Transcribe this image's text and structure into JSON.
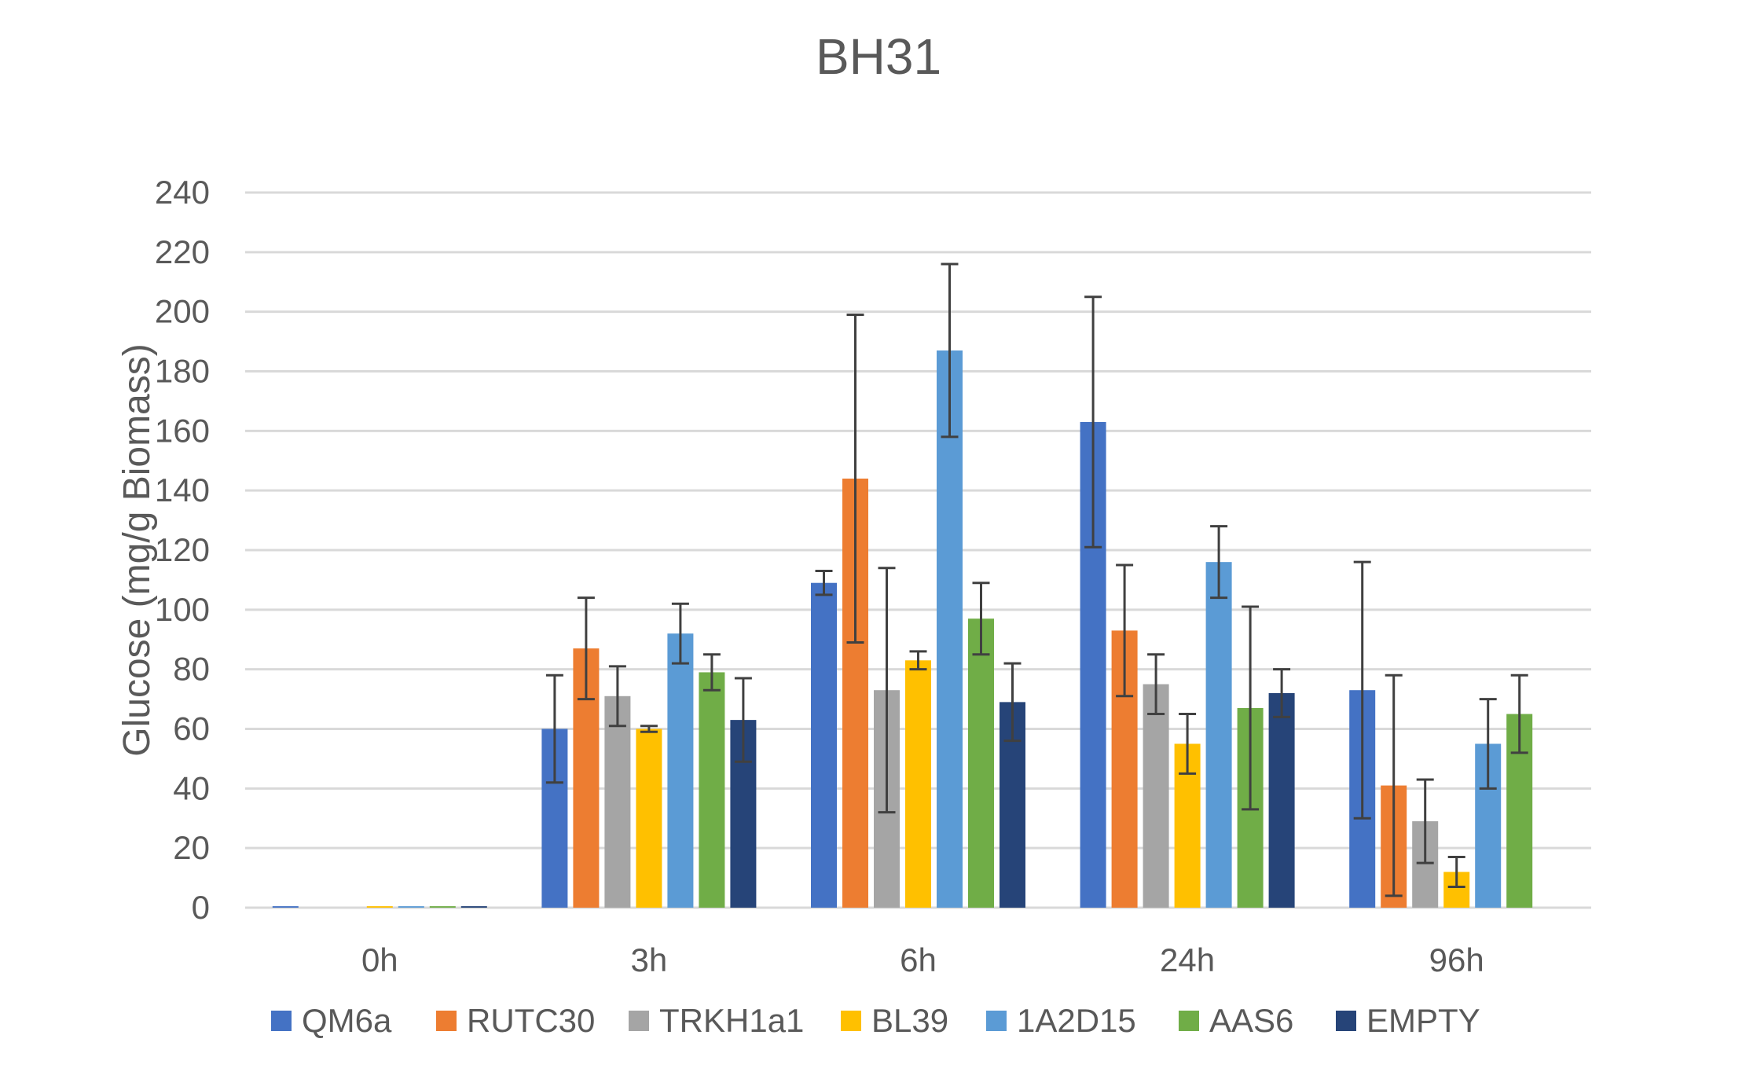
{
  "chart_data": {
    "type": "bar",
    "title": "BH31",
    "xlabel": "",
    "ylabel": "Glucose (mg/g Biomass)",
    "ylim": [
      0,
      240
    ],
    "yticks": [
      0,
      20,
      40,
      60,
      80,
      100,
      120,
      140,
      160,
      180,
      200,
      220,
      240
    ],
    "grid": true,
    "legend_position": "bottom",
    "categories": [
      "0h",
      "3h",
      "6h",
      "24h",
      "96h"
    ],
    "series": [
      {
        "name": "QM6a",
        "color": "#4472C4",
        "values": [
          0.5,
          60,
          109,
          163,
          73
        ],
        "errors": [
          0,
          18,
          4,
          42,
          43
        ]
      },
      {
        "name": "RUTC30",
        "color": "#ED7D31",
        "values": [
          0,
          87,
          144,
          93,
          41
        ],
        "errors": [
          0,
          17,
          55,
          22,
          37
        ]
      },
      {
        "name": "TRKH1a1",
        "color": "#A5A5A5",
        "values": [
          0,
          71,
          73,
          75,
          29
        ],
        "errors": [
          0,
          10,
          41,
          10,
          14
        ]
      },
      {
        "name": "BL39",
        "color": "#FFC000",
        "values": [
          0.5,
          60,
          83,
          55,
          12
        ],
        "errors": [
          0,
          1,
          3,
          10,
          5
        ]
      },
      {
        "name": "1A2D15",
        "color": "#5B9BD5",
        "values": [
          0.5,
          92,
          187,
          116,
          55
        ],
        "errors": [
          0,
          10,
          29,
          12,
          15
        ]
      },
      {
        "name": "AAS6",
        "color": "#70AD47",
        "values": [
          0.5,
          79,
          97,
          67,
          65
        ],
        "errors": [
          0,
          6,
          12,
          34,
          13
        ]
      },
      {
        "name": "EMPTY",
        "color": "#264478",
        "values": [
          0.5,
          63,
          69,
          72,
          0
        ],
        "errors": [
          0,
          14,
          13,
          8,
          0
        ]
      }
    ]
  }
}
